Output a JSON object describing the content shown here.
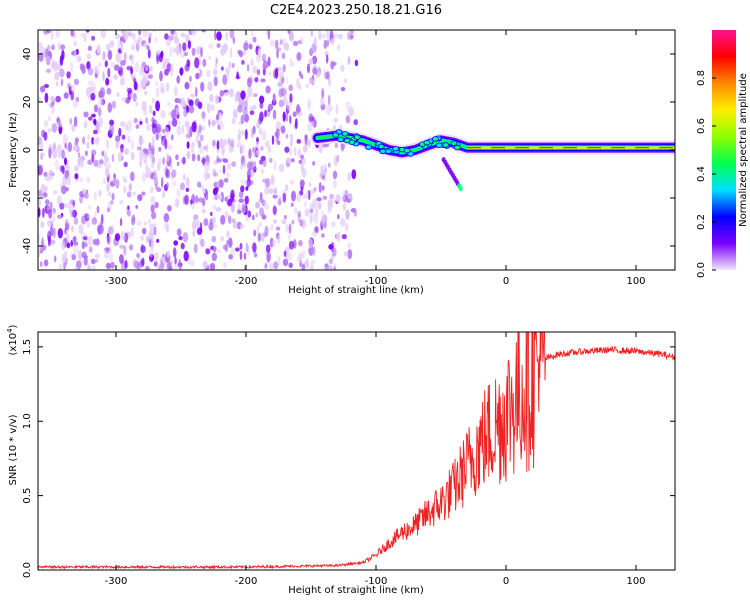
{
  "chart_data": [
    {
      "type": "heatmap",
      "title": "C2E4.2023.250.18.21.G16",
      "xlabel": "Height of straight line (km)",
      "ylabel": "Frequency (Hz)",
      "xlim": [
        -360,
        130
      ],
      "ylim": [
        -50,
        50
      ],
      "xticks": [
        -300,
        -200,
        -100,
        0,
        100
      ],
      "yticks": [
        -40,
        -20,
        0,
        20,
        40
      ],
      "grid": false,
      "noise_region_km": [
        -360,
        -115
      ],
      "signal_track": {
        "x": [
          -145,
          -130,
          -120,
          -110,
          -100,
          -90,
          -80,
          -70,
          -60,
          -50,
          -40,
          -30,
          -20,
          -10,
          0,
          20,
          40,
          60,
          80,
          100,
          120,
          130
        ],
        "freq": [
          5,
          6,
          5,
          4,
          2,
          0,
          -1,
          0,
          2,
          4,
          3,
          1,
          1,
          1,
          1,
          1,
          1,
          1,
          1,
          1,
          1,
          1
        ]
      },
      "colorbar": {
        "label": "Normalized spectral amplitude",
        "range": [
          0.0,
          1.0
        ],
        "ticks": [
          0.0,
          0.2,
          0.4,
          0.6,
          0.8
        ],
        "colors": [
          "#f2e6fa",
          "#7a00ff",
          "#0000ff",
          "#00e0ff",
          "#00ff50",
          "#90ff00",
          "#ffee00",
          "#ff8800",
          "#ff0000",
          "#ff1090"
        ]
      }
    },
    {
      "type": "line",
      "xlabel": "Height of straight line (km)",
      "ylabel": "SNR (10 * v/v)",
      "y_multiplier_label": "(x10",
      "y_multiplier_exp": "4",
      "xlim": [
        -360,
        130
      ],
      "ylim": [
        0,
        1.6
      ],
      "xticks": [
        -300,
        -200,
        -100,
        0,
        100
      ],
      "yticks": [
        "0.0",
        "0.5",
        "1.0",
        "1.5"
      ],
      "color": "#ee2222",
      "series": [
        {
          "name": "SNR",
          "x": [
            -360,
            -300,
            -200,
            -130,
            -110,
            -100,
            -90,
            -80,
            -70,
            -60,
            -50,
            -40,
            -30,
            -20,
            -10,
            0,
            10,
            20,
            30,
            40,
            60,
            80,
            100,
            120,
            130
          ],
          "values": [
            0.02,
            0.02,
            0.02,
            0.03,
            0.05,
            0.1,
            0.18,
            0.25,
            0.3,
            0.38,
            0.45,
            0.55,
            0.7,
            0.85,
            0.95,
            1.05,
            1.2,
            1.35,
            1.42,
            1.45,
            1.47,
            1.48,
            1.47,
            1.45,
            1.43
          ]
        }
      ]
    }
  ]
}
